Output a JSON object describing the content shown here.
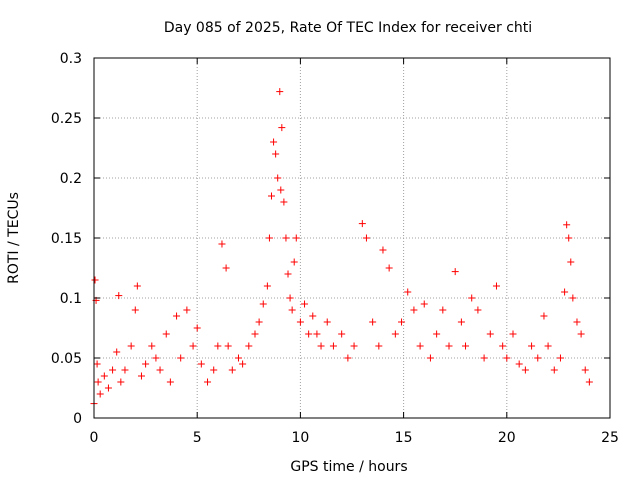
{
  "chart_data": {
    "type": "scatter",
    "title": "Day 085 of 2025, Rate Of TEC Index for receiver chti",
    "xlabel": "GPS time / hours",
    "ylabel": "ROTI / TECUs",
    "xlim": [
      0,
      25
    ],
    "ylim": [
      0,
      0.3
    ],
    "xticks": [
      0,
      5,
      10,
      15,
      20,
      25
    ],
    "yticks": [
      0,
      0.05,
      0.1,
      0.15,
      0.2,
      0.25,
      0.3
    ],
    "xtick_labels": [
      "0",
      "5",
      "10",
      "15",
      "20",
      "25"
    ],
    "ytick_labels": [
      "0",
      "0.05",
      "0.1",
      "0.15",
      "0.2",
      "0.25",
      "0.3"
    ],
    "grid": true,
    "marker": "+",
    "color": "#ff0000",
    "series": [
      {
        "x": [
          0.0,
          0.05,
          0.1,
          0.15,
          0.2,
          0.3,
          0.5,
          0.7,
          0.9,
          1.1,
          1.2,
          1.3,
          1.5,
          1.8,
          2.0,
          2.1,
          2.3,
          2.5,
          2.8,
          3.0,
          3.2,
          3.5,
          3.7,
          4.0,
          4.2,
          4.5,
          4.8,
          5.0,
          5.2,
          5.5,
          5.8,
          6.0,
          6.2,
          6.4,
          6.5,
          6.7,
          7.0,
          7.2,
          7.5,
          7.8,
          8.0,
          8.2,
          8.4,
          8.5,
          8.6,
          8.7,
          8.8,
          8.9,
          9.0,
          9.05,
          9.1,
          9.2,
          9.3,
          9.4,
          9.5,
          9.6,
          9.7,
          9.8,
          10.0,
          10.2,
          10.4,
          10.6,
          10.8,
          11.0,
          11.3,
          11.6,
          12.0,
          12.3,
          12.6,
          13.0,
          13.2,
          13.5,
          13.8,
          14.0,
          14.3,
          14.6,
          14.9,
          15.2,
          15.5,
          15.8,
          16.0,
          16.3,
          16.6,
          16.9,
          17.2,
          17.5,
          17.8,
          18.0,
          18.3,
          18.6,
          18.9,
          19.2,
          19.5,
          19.8,
          20.0,
          20.3,
          20.6,
          20.9,
          21.2,
          21.5,
          21.8,
          22.0,
          22.3,
          22.6,
          22.8,
          22.9,
          23.0,
          23.1,
          23.2,
          23.4,
          23.6,
          23.8,
          24.0
        ],
        "y": [
          0.012,
          0.115,
          0.098,
          0.045,
          0.03,
          0.02,
          0.035,
          0.025,
          0.04,
          0.055,
          0.102,
          0.03,
          0.04,
          0.06,
          0.09,
          0.11,
          0.035,
          0.045,
          0.06,
          0.05,
          0.04,
          0.07,
          0.03,
          0.085,
          0.05,
          0.09,
          0.06,
          0.075,
          0.045,
          0.03,
          0.04,
          0.06,
          0.145,
          0.125,
          0.06,
          0.04,
          0.05,
          0.045,
          0.06,
          0.07,
          0.08,
          0.095,
          0.11,
          0.15,
          0.185,
          0.23,
          0.22,
          0.2,
          0.272,
          0.19,
          0.242,
          0.18,
          0.15,
          0.12,
          0.1,
          0.09,
          0.13,
          0.15,
          0.08,
          0.095,
          0.07,
          0.085,
          0.07,
          0.06,
          0.08,
          0.06,
          0.07,
          0.05,
          0.06,
          0.162,
          0.15,
          0.08,
          0.06,
          0.14,
          0.125,
          0.07,
          0.08,
          0.105,
          0.09,
          0.06,
          0.095,
          0.05,
          0.07,
          0.09,
          0.06,
          0.122,
          0.08,
          0.06,
          0.1,
          0.09,
          0.05,
          0.07,
          0.11,
          0.06,
          0.05,
          0.07,
          0.045,
          0.04,
          0.06,
          0.05,
          0.085,
          0.06,
          0.04,
          0.05,
          0.105,
          0.161,
          0.15,
          0.13,
          0.1,
          0.08,
          0.07,
          0.04,
          0.03
        ]
      }
    ]
  }
}
